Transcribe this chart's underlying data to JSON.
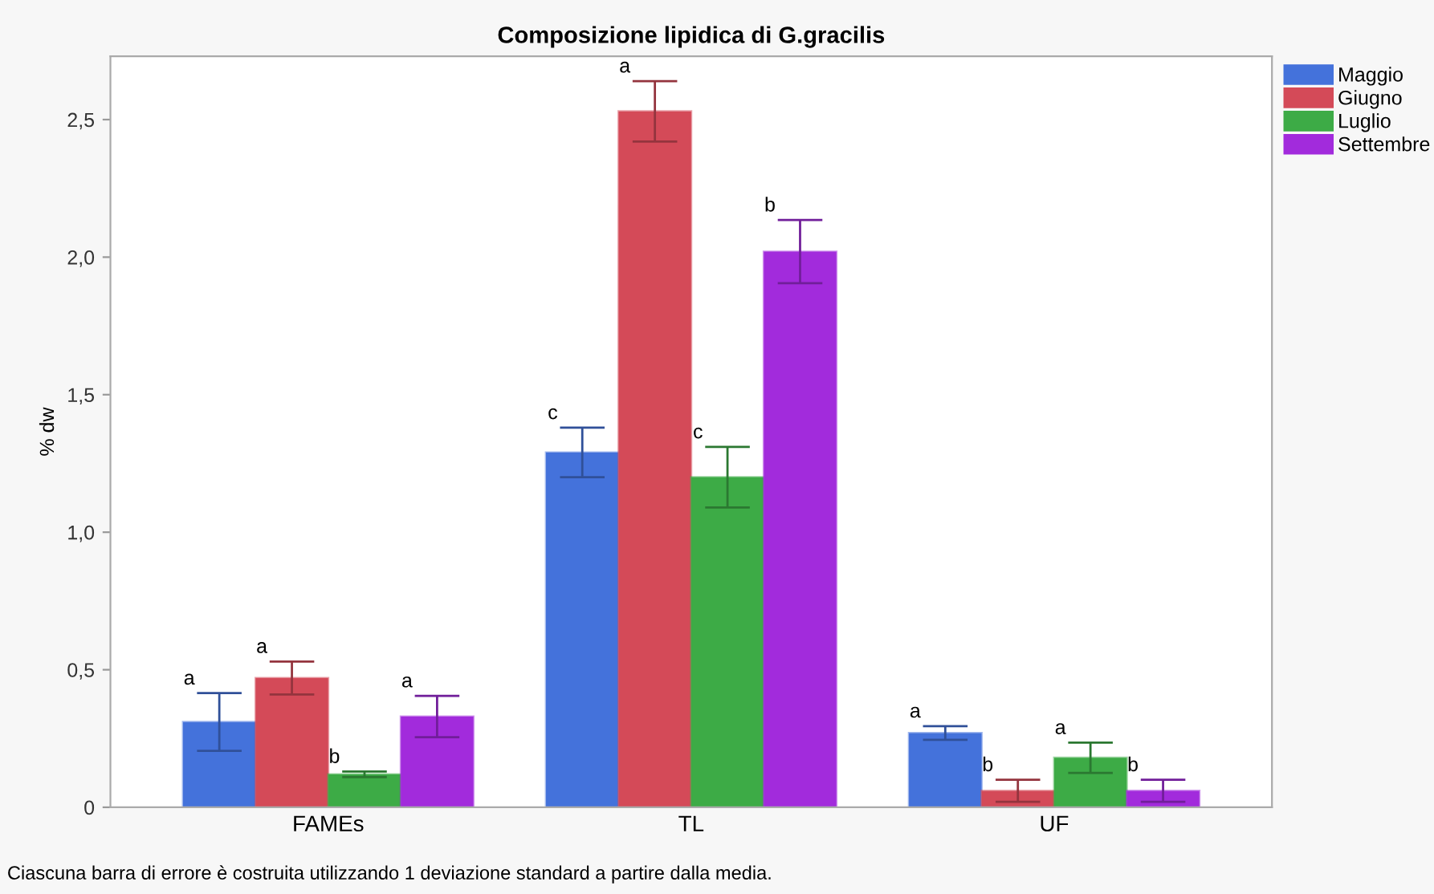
{
  "chart_data": {
    "type": "bar",
    "title": "Composizione lipidica di G.gracilis",
    "ylabel": "% dw",
    "categories": [
      "FAMEs",
      "TL",
      "UF"
    ],
    "series": [
      {
        "name": "Maggio",
        "color": "#4472db",
        "values": [
          0.31,
          1.29,
          0.27
        ],
        "errors": [
          0.105,
          0.09,
          0.025
        ],
        "value_labels": [
          "a",
          "c",
          "a"
        ]
      },
      {
        "name": "Giugno",
        "color": "#d44a58",
        "values": [
          0.47,
          2.53,
          0.06
        ],
        "errors": [
          0.06,
          0.11,
          0.04
        ],
        "value_labels": [
          "a",
          "a",
          "b"
        ]
      },
      {
        "name": "Luglio",
        "color": "#3dab46",
        "values": [
          0.12,
          1.2,
          0.18
        ],
        "errors": [
          0.01,
          0.11,
          0.055
        ],
        "value_labels": [
          "b",
          "c",
          "a"
        ]
      },
      {
        "name": "Settembre",
        "color": "#a22bdc",
        "values": [
          0.33,
          2.02,
          0.06
        ],
        "errors": [
          0.075,
          0.115,
          0.04
        ],
        "value_labels": [
          "a",
          "b",
          "b"
        ]
      }
    ],
    "ylim": [
      0,
      2.73
    ],
    "yticks": [
      0,
      {
        "value": 0.5,
        "label": "0,5"
      },
      {
        "value": 1.0,
        "label": "1,0"
      },
      {
        "value": 1.5,
        "label": "1,5"
      },
      {
        "value": 2.0,
        "label": "2,0"
      },
      {
        "value": 2.5,
        "label": "2,5"
      }
    ],
    "grid": false,
    "legend": "top right",
    "annotations": [
      "Ciascuna barra di errore è costruita utilizzando 1 deviazione standard a partire dalla media."
    ]
  }
}
